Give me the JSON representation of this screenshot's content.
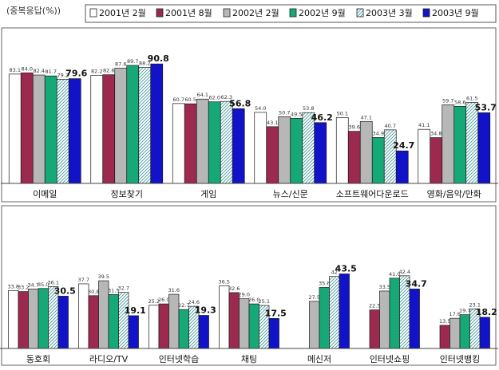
{
  "unit_note": "(중복응답(%))",
  "legend": [
    {
      "label": "2001년 2월",
      "fill": "#ffffff",
      "pattern": false
    },
    {
      "label": "2001년 8월",
      "fill": "#9c2a4e",
      "pattern": false
    },
    {
      "label": "2002년 2월",
      "fill": "#b7b7b7",
      "pattern": false
    },
    {
      "label": "2002년 9월",
      "fill": "#17a878",
      "pattern": false
    },
    {
      "label": "2003년 3월",
      "fill": "#ffffff",
      "pattern": true
    },
    {
      "label": "2003년 9월",
      "fill": "#1212c8",
      "pattern": false
    }
  ],
  "chart_data": [
    {
      "type": "bar",
      "ylim": [
        0,
        100
      ],
      "categories": [
        "이메일",
        "정보찾기",
        "게임",
        "뉴스/신문",
        "소프트웨어다운로드",
        "영화/음악/만화"
      ],
      "series": [
        {
          "name": "2001년 2월",
          "values": [
            83.1,
            82.2,
            60.7,
            54.0,
            50.1,
            41.1
          ]
        },
        {
          "name": "2001년 8월",
          "values": [
            84.0,
            82.6,
            60.5,
            43.1,
            39.6,
            34.8
          ]
        },
        {
          "name": "2002년 2월",
          "values": [
            82.4,
            87.6,
            64.1,
            50.7,
            47.1,
            59.7
          ]
        },
        {
          "name": "2002년 9월",
          "values": [
            81.7,
            89.7,
            62.0,
            49.5,
            34.9,
            58.6
          ]
        },
        {
          "name": "2003년 3월",
          "values": [
            79.2,
            88.2,
            62.3,
            53.8,
            40.7,
            61.5
          ]
        },
        {
          "name": "2003년 9월",
          "values": [
            79.6,
            90.8,
            56.8,
            46.2,
            24.7,
            53.7
          ]
        }
      ],
      "labels": [
        [
          "83.1",
          "84.0",
          "82.4",
          "81.7",
          "79.2",
          "79.6"
        ],
        [
          "82.2",
          "82.6",
          "87.6",
          "89.7",
          "88.2",
          "90.8"
        ],
        [
          "60.7",
          "60.5",
          "64.1",
          "62.0",
          "62.3",
          "56.8"
        ],
        [
          "54.0",
          "43.1",
          "50.7",
          "49.5",
          "53.8",
          "46.2"
        ],
        [
          "50.1",
          "39.6",
          "47.1",
          "34.9",
          "40.7",
          "24.7"
        ],
        [
          "41.1",
          "34.8",
          "59.7",
          "58.6",
          "61.5",
          "53.7"
        ]
      ]
    },
    {
      "type": "bar",
      "ylim": [
        0,
        100
      ],
      "categories": [
        "동호회",
        "라디오/TV",
        "인터넷학습",
        "채팅",
        "메신저",
        "인터넷쇼핑",
        "인터넷뱅킹"
      ],
      "series": [
        {
          "name": "2001년 2월",
          "values": [
            33.8,
            37.7,
            25.2,
            36.5,
            null,
            null,
            null
          ]
        },
        {
          "name": "2001년 8월",
          "values": [
            33.2,
            30.8,
            26.0,
            32.6,
            null,
            22.5,
            13.5
          ]
        },
        {
          "name": "2002년 2월",
          "values": [
            34.7,
            39.5,
            31.6,
            29.0,
            27.5,
            33.5,
            17.6
          ]
        },
        {
          "name": "2002년 9월",
          "values": [
            35.0,
            31.5,
            22.7,
            26.0,
            35.6,
            41.0,
            19.7
          ]
        },
        {
          "name": "2003년 3월",
          "values": [
            36.1,
            32.7,
            24.6,
            25.1,
            42.0,
            42.4,
            23.1
          ]
        },
        {
          "name": "2003년 9월",
          "values": [
            30.5,
            19.1,
            19.3,
            17.5,
            43.5,
            34.7,
            18.2
          ]
        }
      ],
      "labels": [
        [
          "33.8",
          "33.2",
          "34.7",
          "35.0",
          "36.1",
          "30.5"
        ],
        [
          "37.7",
          "30.8",
          "39.5",
          "31.5",
          "32.7",
          "19.1"
        ],
        [
          "25.2",
          "26.0",
          "31.6",
          "22.7",
          "24.6",
          "19.3"
        ],
        [
          "36.5",
          "32.6",
          "29.0",
          "26.0",
          "25.1",
          "17.5"
        ],
        [
          "",
          "",
          "27.5",
          "35.6",
          "42",
          "43.5"
        ],
        [
          "",
          "22.5",
          "33.5",
          "41.0",
          "42.4",
          "34.7"
        ],
        [
          "",
          "13.5",
          "17.6",
          "19.7",
          "23.1",
          "18.2"
        ]
      ]
    }
  ]
}
